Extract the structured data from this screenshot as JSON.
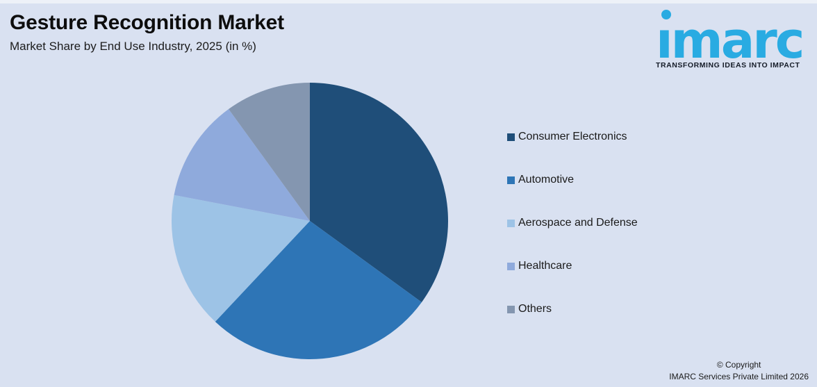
{
  "header": {
    "title": "Gesture Recognition Market",
    "subtitle": "Market Share by End Use Industry, 2025 (in %)"
  },
  "logo": {
    "brand": "imarc",
    "tagline": "TRANSFORMING IDEAS INTO IMPACT",
    "brand_color": "#29ABE2",
    "tagline_color": "#151C28"
  },
  "chart_data": {
    "type": "pie",
    "title": "Gesture Recognition Market",
    "subtitle": "Market Share by End Use Industry, 2025 (in %)",
    "unit": "%",
    "start_angle_deg": 0,
    "direction": "clockwise",
    "categories": [
      "Consumer Electronics",
      "Automotive",
      "Aerospace and Defense",
      "Healthcare",
      "Others"
    ],
    "values": [
      35,
      27,
      16,
      12,
      10
    ],
    "colors": [
      "#1F4E79",
      "#2E75B6",
      "#9DC3E6",
      "#8FAADC",
      "#8496B0"
    ],
    "legend_position": "right",
    "data_labels": false
  },
  "footer": {
    "line1": "© Copyright",
    "line2": "IMARC Services Private Limited 2026"
  },
  "colors": {
    "background": "#D9E1F1",
    "title_text": "#0d0d0d",
    "legend_text": "#1a1a1a"
  }
}
